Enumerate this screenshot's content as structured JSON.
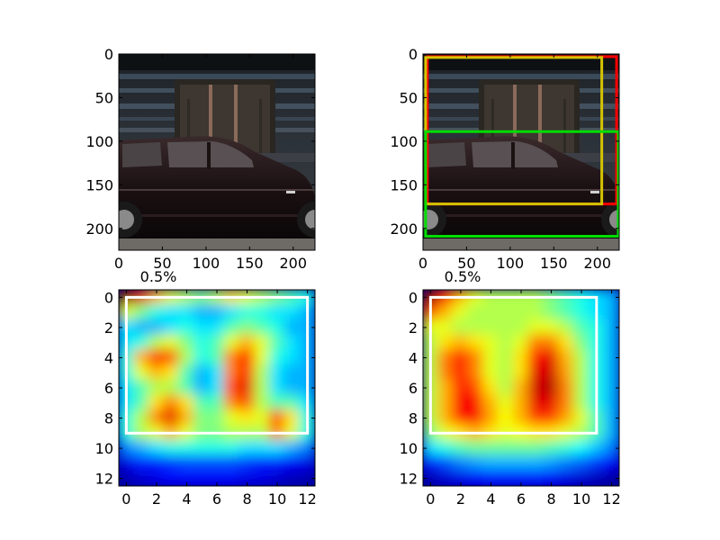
{
  "figure": {
    "colors": {
      "box_red": "#ff0000",
      "box_yellow": "#d4c400",
      "box_green": "#00dd00",
      "box_white": "#ffffff",
      "frame": "#000000"
    }
  },
  "chart_data": [
    {
      "type": "image",
      "panel": "top-left",
      "title": "",
      "image_extent": [
        225,
        225
      ],
      "xlim": [
        0,
        225
      ],
      "ylim": [
        225,
        0
      ],
      "xticks": [
        0,
        50,
        100,
        150,
        200
      ],
      "yticks": [
        0,
        50,
        100,
        150,
        200
      ],
      "boxes": []
    },
    {
      "type": "image",
      "panel": "top-right",
      "title": "",
      "image_extent": [
        225,
        225
      ],
      "xlim": [
        0,
        225
      ],
      "ylim": [
        225,
        0
      ],
      "xticks": [
        0,
        50,
        100,
        150,
        200
      ],
      "yticks": [
        0,
        50,
        100,
        150,
        200
      ],
      "boxes": [
        {
          "color": "#ff0000",
          "x0": 5,
          "y0": 3,
          "x1": 222,
          "y1": 172
        },
        {
          "color": "#d4c400",
          "x0": 3,
          "y0": 4,
          "x1": 205,
          "y1": 172
        },
        {
          "color": "#00dd00",
          "x0": 3,
          "y0": 89,
          "x1": 224,
          "y1": 209
        }
      ]
    },
    {
      "type": "heatmap",
      "panel": "bottom-left",
      "title": "0.5%",
      "grid_size": [
        13,
        13
      ],
      "xlim": [
        -0.5,
        12.5
      ],
      "ylim": [
        12.5,
        -0.5
      ],
      "xticks": [
        0,
        2,
        4,
        6,
        8,
        10,
        12
      ],
      "yticks": [
        0,
        2,
        4,
        6,
        8,
        10,
        12
      ],
      "box": {
        "color": "#ffffff",
        "x0": 0,
        "y0": 0,
        "x1": 12,
        "y1": 9
      },
      "values": [
        [
          1.0,
          0.9,
          0.7,
          0.6,
          0.55,
          0.5,
          0.55,
          0.65,
          0.6,
          0.55,
          0.5,
          0.45,
          0.4
        ],
        [
          0.6,
          0.5,
          0.4,
          0.35,
          0.35,
          0.3,
          0.3,
          0.35,
          0.4,
          0.4,
          0.35,
          0.35,
          0.3
        ],
        [
          0.35,
          0.3,
          0.3,
          0.35,
          0.4,
          0.35,
          0.35,
          0.45,
          0.5,
          0.45,
          0.4,
          0.3,
          0.3
        ],
        [
          0.35,
          0.4,
          0.55,
          0.6,
          0.5,
          0.4,
          0.45,
          0.6,
          0.7,
          0.6,
          0.45,
          0.35,
          0.3
        ],
        [
          0.4,
          0.7,
          0.85,
          0.8,
          0.55,
          0.4,
          0.45,
          0.75,
          0.85,
          0.6,
          0.4,
          0.35,
          0.3
        ],
        [
          0.4,
          0.6,
          0.7,
          0.65,
          0.45,
          0.3,
          0.35,
          0.75,
          0.85,
          0.55,
          0.35,
          0.3,
          0.3
        ],
        [
          0.35,
          0.45,
          0.55,
          0.55,
          0.45,
          0.3,
          0.35,
          0.8,
          0.9,
          0.55,
          0.35,
          0.3,
          0.3
        ],
        [
          0.35,
          0.45,
          0.65,
          0.75,
          0.65,
          0.45,
          0.45,
          0.75,
          0.8,
          0.55,
          0.45,
          0.45,
          0.35
        ],
        [
          0.4,
          0.55,
          0.75,
          0.9,
          0.7,
          0.5,
          0.5,
          0.6,
          0.65,
          0.6,
          0.8,
          0.65,
          0.4
        ],
        [
          0.4,
          0.55,
          0.6,
          0.7,
          0.6,
          0.5,
          0.5,
          0.55,
          0.55,
          0.55,
          0.75,
          0.6,
          0.4
        ],
        [
          0.25,
          0.3,
          0.35,
          0.4,
          0.4,
          0.4,
          0.4,
          0.4,
          0.35,
          0.35,
          0.35,
          0.3,
          0.25
        ],
        [
          0.1,
          0.15,
          0.15,
          0.18,
          0.2,
          0.2,
          0.2,
          0.2,
          0.18,
          0.15,
          0.15,
          0.12,
          0.1
        ],
        [
          0.05,
          0.08,
          0.1,
          0.12,
          0.12,
          0.12,
          0.12,
          0.12,
          0.1,
          0.1,
          0.08,
          0.06,
          0.05
        ]
      ]
    },
    {
      "type": "heatmap",
      "panel": "bottom-right",
      "title": "0.5%",
      "grid_size": [
        13,
        13
      ],
      "xlim": [
        -0.5,
        12.5
      ],
      "ylim": [
        12.5,
        -0.5
      ],
      "xticks": [
        0,
        2,
        4,
        6,
        8,
        10,
        12
      ],
      "yticks": [
        0,
        2,
        4,
        6,
        8,
        10,
        12
      ],
      "box": {
        "color": "#ffffff",
        "x0": 0,
        "y0": 0,
        "x1": 11,
        "y1": 9
      },
      "values": [
        [
          1.0,
          0.85,
          0.7,
          0.6,
          0.55,
          0.55,
          0.55,
          0.55,
          0.5,
          0.45,
          0.4,
          0.35,
          0.3
        ],
        [
          0.8,
          0.7,
          0.6,
          0.55,
          0.55,
          0.55,
          0.55,
          0.55,
          0.5,
          0.45,
          0.4,
          0.35,
          0.3
        ],
        [
          0.6,
          0.6,
          0.55,
          0.55,
          0.55,
          0.55,
          0.55,
          0.6,
          0.6,
          0.55,
          0.45,
          0.4,
          0.3
        ],
        [
          0.55,
          0.65,
          0.7,
          0.65,
          0.6,
          0.55,
          0.6,
          0.75,
          0.75,
          0.65,
          0.5,
          0.4,
          0.3
        ],
        [
          0.55,
          0.75,
          0.85,
          0.75,
          0.6,
          0.55,
          0.65,
          0.85,
          0.9,
          0.7,
          0.55,
          0.4,
          0.3
        ],
        [
          0.55,
          0.75,
          0.85,
          0.75,
          0.6,
          0.55,
          0.65,
          0.9,
          0.92,
          0.72,
          0.55,
          0.4,
          0.3
        ],
        [
          0.55,
          0.7,
          0.85,
          0.8,
          0.65,
          0.55,
          0.7,
          0.92,
          0.95,
          0.75,
          0.55,
          0.4,
          0.3
        ],
        [
          0.55,
          0.7,
          0.88,
          0.88,
          0.7,
          0.6,
          0.7,
          0.9,
          0.9,
          0.75,
          0.55,
          0.4,
          0.3
        ],
        [
          0.55,
          0.7,
          0.85,
          0.88,
          0.72,
          0.62,
          0.7,
          0.82,
          0.82,
          0.72,
          0.6,
          0.45,
          0.3
        ],
        [
          0.5,
          0.6,
          0.65,
          0.7,
          0.65,
          0.6,
          0.62,
          0.65,
          0.65,
          0.6,
          0.55,
          0.45,
          0.3
        ],
        [
          0.35,
          0.4,
          0.45,
          0.48,
          0.48,
          0.48,
          0.48,
          0.48,
          0.45,
          0.42,
          0.38,
          0.32,
          0.25
        ],
        [
          0.15,
          0.2,
          0.25,
          0.28,
          0.3,
          0.3,
          0.3,
          0.3,
          0.28,
          0.25,
          0.22,
          0.18,
          0.12
        ],
        [
          0.05,
          0.08,
          0.1,
          0.12,
          0.14,
          0.14,
          0.14,
          0.14,
          0.12,
          0.1,
          0.08,
          0.06,
          0.04
        ]
      ]
    }
  ]
}
